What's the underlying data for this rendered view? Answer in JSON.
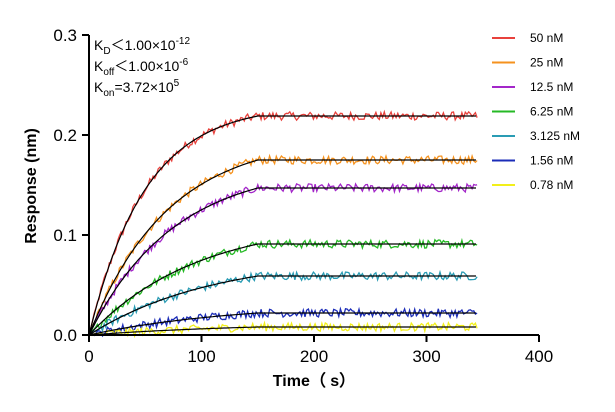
{
  "chart_data": {
    "type": "line",
    "xlabel": "Time（ s）",
    "ylabel": "Response (nm)",
    "xlim": [
      0,
      400
    ],
    "ylim": [
      0,
      0.3
    ],
    "xticks": [
      "0",
      "100",
      "200",
      "300",
      "400"
    ],
    "yticks": [
      "0.0",
      "0.1",
      "0.2",
      "0.3"
    ],
    "association_end": 150,
    "data_end": 345,
    "annotations": {
      "kd": {
        "sym": "K",
        "sub": "D",
        "text": "＜1.00×10",
        "sup": "-12"
      },
      "koff": {
        "sym": "K",
        "sub": "off",
        "text": "＜1.00×10",
        "sup": "-6"
      },
      "kon": {
        "sym": "K",
        "sub": "on",
        "text": "=3.72×10",
        "sup": "5"
      }
    },
    "series": [
      {
        "name": "50 nM",
        "color": "#e8413c",
        "plateau": 0.219,
        "tau": 50
      },
      {
        "name": "25 nM",
        "color": "#f5921e",
        "plateau": 0.175,
        "tau": 70
      },
      {
        "name": "12.5 nM",
        "color": "#a326c9",
        "plateau": 0.147,
        "tau": 75
      },
      {
        "name": "6.25 nM",
        "color": "#25b925",
        "plateau": 0.091,
        "tau": 95
      },
      {
        "name": "3.125 nM",
        "color": "#2a9cb4",
        "plateau": 0.059,
        "tau": 110
      },
      {
        "name": "1.56 nM",
        "color": "#1b2cb8",
        "plateau": 0.022,
        "tau": 130
      },
      {
        "name": "0.78 nM",
        "color": "#f2ef1a",
        "plateau": 0.008,
        "tau": 150
      }
    ]
  }
}
